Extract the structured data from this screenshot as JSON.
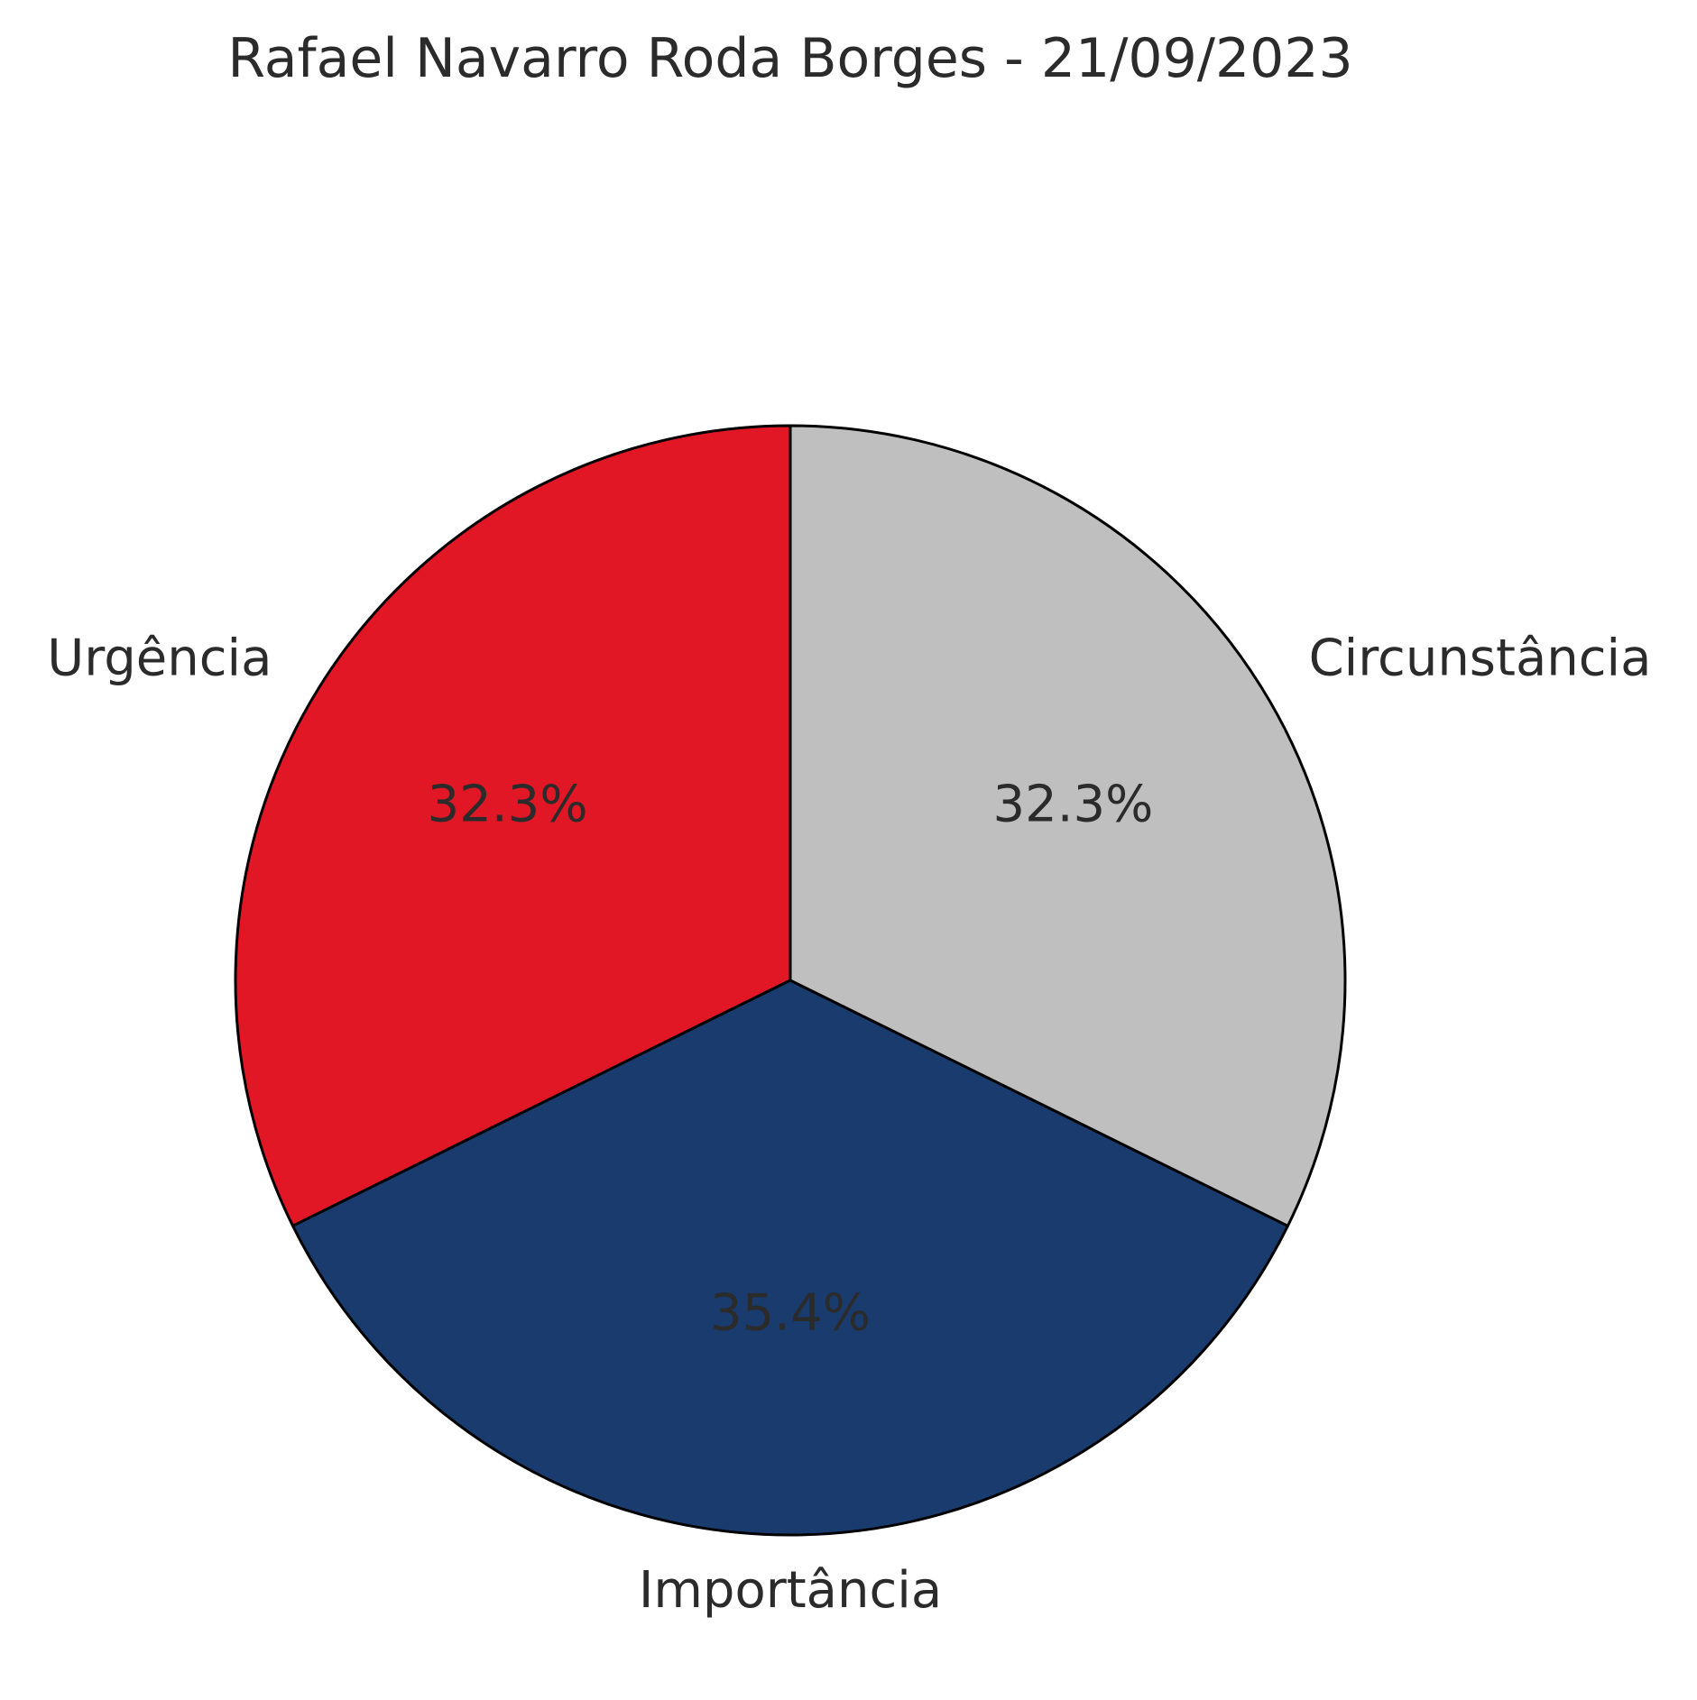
{
  "chart_data": {
    "type": "pie",
    "title": "Rafael Navarro Roda Borges - 21/09/2023",
    "labels": [
      "Urgência",
      "Importância",
      "Circunstância"
    ],
    "values": [
      32.3,
      35.4,
      32.3
    ],
    "value_labels": [
      "32.3%",
      "35.4%",
      "32.3%"
    ],
    "colors": [
      "#e11726",
      "#1a3b6e",
      "#bebfbe"
    ],
    "edge_color": "#000000",
    "start_angle_deg": 90,
    "direction": "counterclockwise",
    "legend": "none"
  }
}
